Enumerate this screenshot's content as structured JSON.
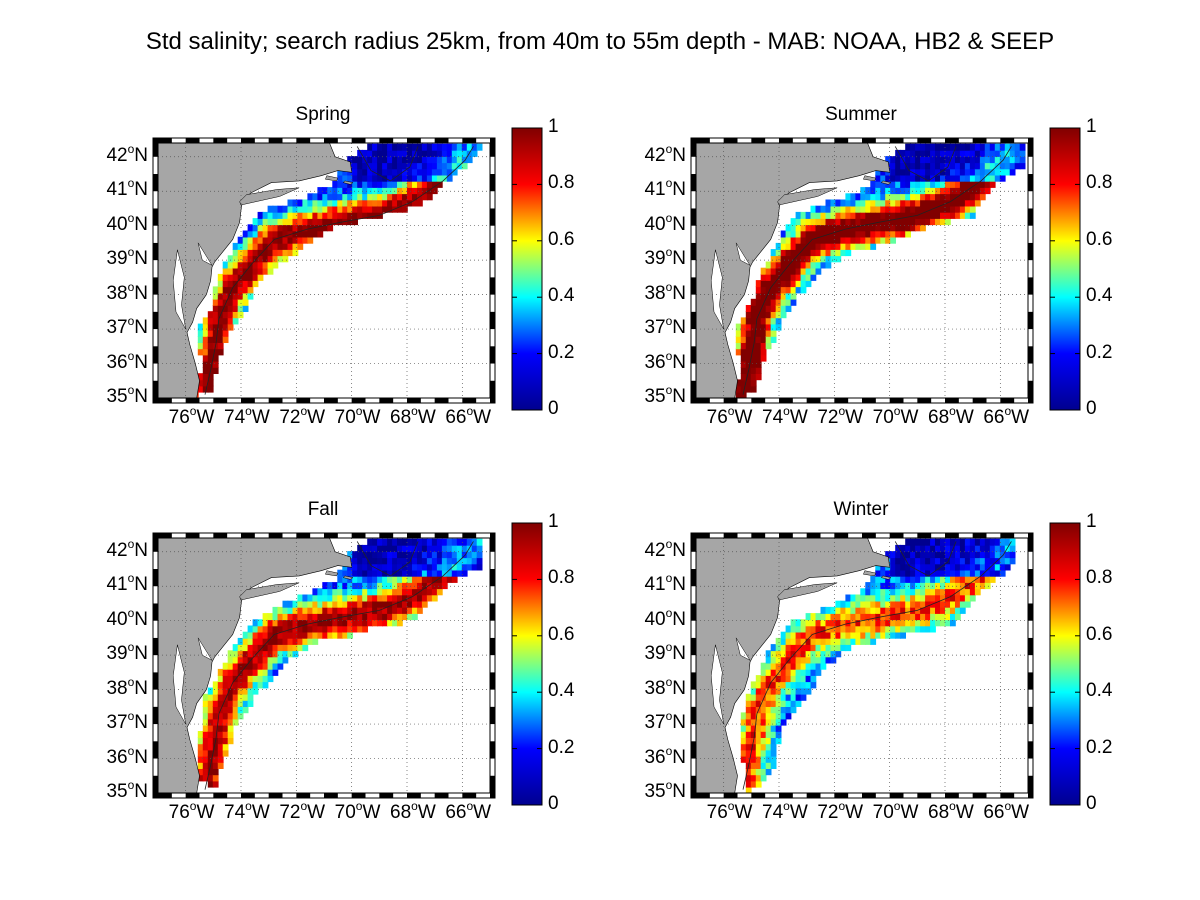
{
  "title": "Std salinity; search radius 25km, from 40m to 55m depth - MAB: NOAA, HB2 & SEEP",
  "colormap": {
    "name": "jet",
    "colors": [
      "#00008f",
      "#0000ff",
      "#00ffff",
      "#ffff00",
      "#ff0000",
      "#800000"
    ]
  },
  "land_color": "#a6a6a6",
  "ocean_color": "#ffffff",
  "colorbar_ticks": [
    "0",
    "0.2",
    "0.4",
    "0.6",
    "0.8",
    "1"
  ],
  "lat_labels": [
    "42",
    "41",
    "40",
    "39",
    "38",
    "37",
    "36",
    "35"
  ],
  "lat_suffix": "N",
  "lon_labels": [
    "76",
    "74",
    "72",
    "70",
    "68",
    "66"
  ],
  "lon_suffix": "W",
  "degree_symbol": "o",
  "panels": [
    {
      "name": "Spring"
    },
    {
      "name": "Summer"
    },
    {
      "name": "Fall"
    },
    {
      "name": "Winter"
    }
  ],
  "chart_data": {
    "type": "heatmap",
    "title": "Std salinity; search radius 25km, from 40m to 55m depth - MAB: NOAA, HB2 & SEEP",
    "subplots": [
      "Spring",
      "Summer",
      "Fall",
      "Winter"
    ],
    "xlim": [
      -77,
      -65
    ],
    "ylim": [
      35,
      42.4
    ],
    "x_ticks": [
      -76,
      -74,
      -72,
      -70,
      -68,
      -66
    ],
    "y_ticks": [
      35,
      36,
      37,
      38,
      39,
      40,
      41,
      42
    ],
    "colorbar_range": [
      0,
      1
    ],
    "grid": true
  }
}
